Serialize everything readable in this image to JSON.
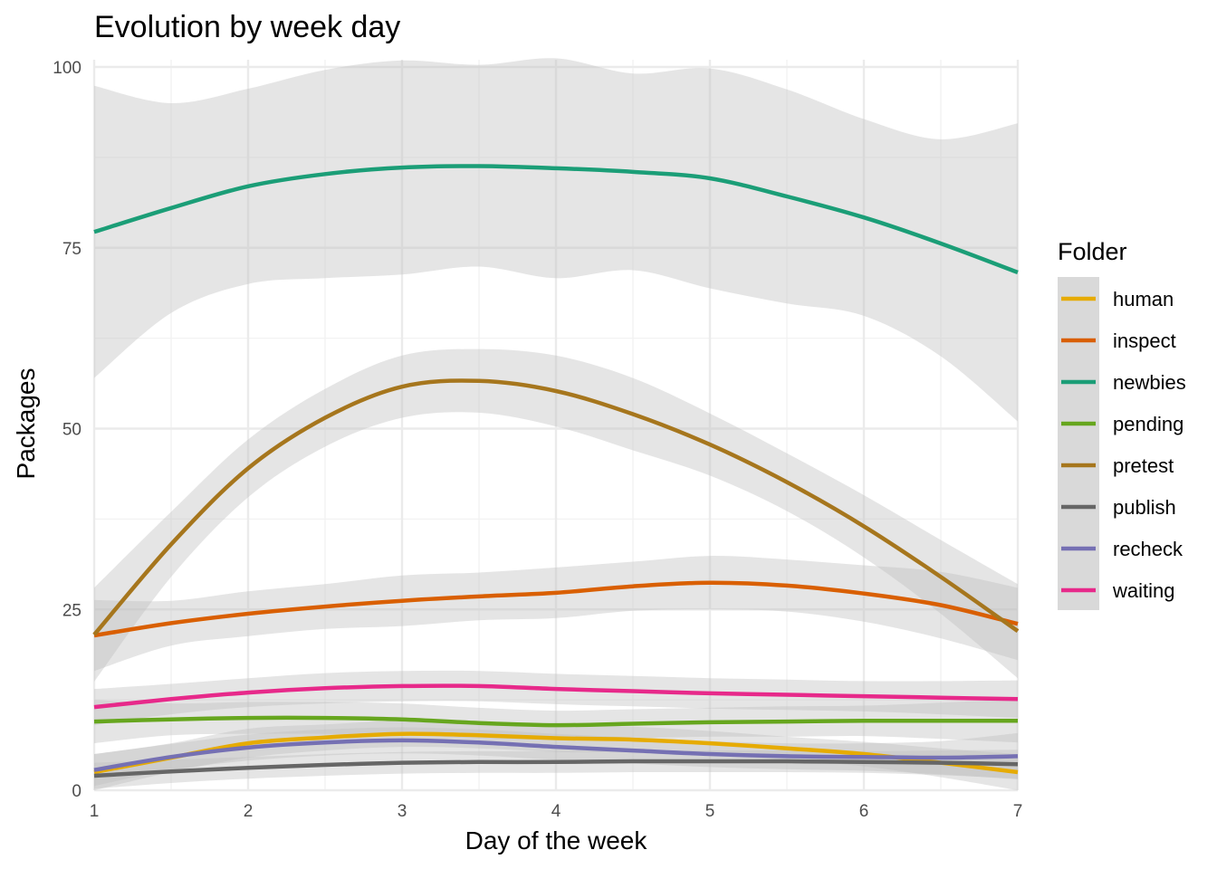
{
  "chart_data": {
    "type": "line",
    "title": "Evolution by week day",
    "xlabel": "Day of the week",
    "ylabel": "Packages",
    "xlim": [
      1,
      7
    ],
    "ylim": [
      0,
      100
    ],
    "x_ticks": [
      1,
      2,
      3,
      4,
      5,
      6,
      7
    ],
    "y_ticks": [
      0,
      25,
      50,
      75,
      100
    ],
    "grid": true,
    "legend_title": "Folder",
    "legend_position": "right",
    "x": [
      1,
      1.5,
      2,
      2.5,
      3,
      3.5,
      4,
      4.5,
      5,
      5.5,
      6,
      6.5,
      7
    ],
    "series": [
      {
        "name": "human",
        "color": "#E6AB02",
        "values": [
          2.5,
          4.5,
          6.5,
          7.3,
          7.8,
          7.6,
          7.2,
          7.0,
          6.5,
          5.8,
          5.0,
          3.8,
          2.5
        ],
        "lower": [
          0.0,
          2.5,
          4.5,
          5.5,
          6.0,
          5.8,
          5.3,
          5.2,
          4.8,
          4.2,
          3.3,
          1.8,
          0.0
        ],
        "upper": [
          5.0,
          6.5,
          8.5,
          9.1,
          9.6,
          9.4,
          9.1,
          8.8,
          8.2,
          7.4,
          6.7,
          5.8,
          5.0
        ]
      },
      {
        "name": "inspect",
        "color": "#D95F02",
        "values": [
          21.4,
          23.1,
          24.4,
          25.4,
          26.2,
          26.8,
          27.3,
          28.2,
          28.7,
          28.3,
          27.2,
          25.6,
          23.0
        ],
        "lower": [
          16.5,
          20.0,
          21.3,
          22.3,
          22.7,
          23.5,
          23.8,
          24.8,
          25.0,
          24.7,
          23.3,
          21.0,
          18.0
        ],
        "upper": [
          26.3,
          26.2,
          27.5,
          28.5,
          29.7,
          30.1,
          30.8,
          31.6,
          32.4,
          31.9,
          31.1,
          30.2,
          28.0
        ]
      },
      {
        "name": "newbies",
        "color": "#1B9E77",
        "values": [
          77.2,
          80.5,
          83.5,
          85.2,
          86.1,
          86.3,
          86.0,
          85.5,
          84.6,
          82.1,
          79.2,
          75.6,
          71.6
        ],
        "lower": [
          57.0,
          66.0,
          70.0,
          70.8,
          71.3,
          72.4,
          70.8,
          71.9,
          69.4,
          67.3,
          65.6,
          60.0,
          51.0
        ],
        "upper": [
          97.4,
          95.0,
          97.0,
          99.6,
          100.9,
          100.3,
          101.2,
          99.1,
          99.8,
          96.9,
          92.8,
          90.0,
          92.2
        ]
      },
      {
        "name": "pending",
        "color": "#66A61E",
        "values": [
          9.5,
          9.8,
          10.0,
          10.0,
          9.8,
          9.3,
          9.0,
          9.2,
          9.4,
          9.5,
          9.6,
          9.6,
          9.6
        ],
        "lower": [
          6.5,
          7.6,
          7.8,
          7.8,
          7.6,
          7.2,
          7.0,
          7.2,
          7.4,
          7.4,
          7.5,
          7.1,
          6.6
        ],
        "upper": [
          12.5,
          12.0,
          12.2,
          12.2,
          12.0,
          11.4,
          11.0,
          11.2,
          11.4,
          11.6,
          11.7,
          12.1,
          12.6
        ]
      },
      {
        "name": "pretest",
        "color": "#A6761D",
        "values": [
          21.5,
          34.0,
          44.5,
          51.5,
          55.8,
          56.6,
          55.2,
          52.0,
          47.8,
          42.6,
          36.5,
          29.5,
          22.0
        ],
        "lower": [
          15.0,
          29.5,
          40.5,
          47.5,
          51.5,
          52.2,
          50.3,
          47.0,
          43.5,
          38.6,
          32.2,
          24.4,
          15.5
        ],
        "upper": [
          28.0,
          38.5,
          48.5,
          55.5,
          60.1,
          61.0,
          60.1,
          57.0,
          52.1,
          46.6,
          40.8,
          34.6,
          28.5
        ]
      },
      {
        "name": "publish",
        "color": "#666666",
        "values": [
          2.0,
          2.6,
          3.1,
          3.5,
          3.8,
          3.9,
          3.9,
          4.0,
          4.0,
          4.0,
          3.9,
          3.8,
          3.6
        ],
        "lower": [
          0.2,
          1.0,
          1.6,
          2.0,
          2.3,
          2.4,
          2.4,
          2.5,
          2.5,
          2.5,
          2.4,
          2.1,
          1.6
        ],
        "upper": [
          3.8,
          4.2,
          4.6,
          5.0,
          5.3,
          5.4,
          5.4,
          5.5,
          5.5,
          5.5,
          5.4,
          5.5,
          5.6
        ]
      },
      {
        "name": "recheck",
        "color": "#7570B3",
        "values": [
          2.8,
          4.6,
          5.9,
          6.6,
          6.9,
          6.6,
          6.0,
          5.5,
          5.0,
          4.7,
          4.6,
          4.5,
          4.7
        ],
        "lower": [
          0.6,
          2.8,
          4.1,
          4.8,
          5.1,
          4.8,
          4.2,
          3.7,
          3.2,
          2.9,
          2.7,
          2.2,
          1.5
        ],
        "upper": [
          5.0,
          6.4,
          7.7,
          8.4,
          8.7,
          8.4,
          7.8,
          7.3,
          6.8,
          6.5,
          6.5,
          6.8,
          7.9
        ]
      },
      {
        "name": "waiting",
        "color": "#E7298A",
        "values": [
          11.5,
          12.6,
          13.5,
          14.1,
          14.4,
          14.4,
          14.0,
          13.7,
          13.4,
          13.2,
          13.0,
          12.8,
          12.6
        ],
        "lower": [
          9.0,
          10.5,
          11.5,
          12.0,
          12.3,
          12.3,
          11.9,
          11.6,
          11.3,
          11.1,
          10.9,
          10.5,
          10.0
        ],
        "upper": [
          14.0,
          14.7,
          15.5,
          16.2,
          16.5,
          16.5,
          16.1,
          15.8,
          15.5,
          15.3,
          15.1,
          15.1,
          15.2
        ]
      }
    ],
    "band_color": "#bdbdbd"
  }
}
